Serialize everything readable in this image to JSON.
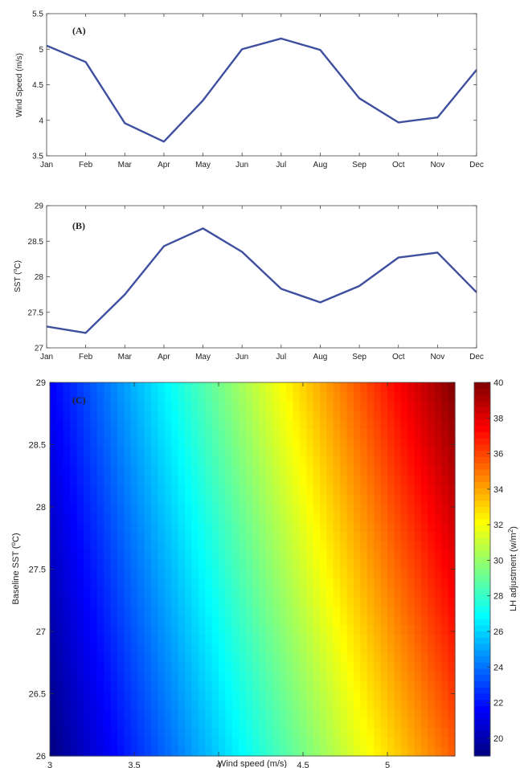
{
  "chart_data": [
    {
      "type": "line",
      "panel_label": "(A)",
      "categories": [
        "Jan",
        "Feb",
        "Mar",
        "Apr",
        "May",
        "Jun",
        "Jul",
        "Aug",
        "Sep",
        "Oct",
        "Nov",
        "Dec"
      ],
      "values": [
        5.05,
        4.82,
        3.96,
        3.7,
        4.28,
        5.0,
        5.15,
        4.99,
        4.31,
        3.97,
        4.04,
        4.71
      ],
      "xlabel": "",
      "ylabel": "Wind Speed (m/s)",
      "ylim": [
        3.5,
        5.5
      ],
      "yticks": [
        "3.5",
        "4",
        "4.5",
        "5",
        "5.5"
      ],
      "line_color": "#3f4f9f",
      "grid": false
    },
    {
      "type": "line",
      "panel_label": "(B)",
      "categories": [
        "Jan",
        "Feb",
        "Mar",
        "Apr",
        "May",
        "Jun",
        "Jul",
        "Aug",
        "Sep",
        "Oct",
        "Nov",
        "Dec"
      ],
      "values": [
        27.3,
        27.21,
        27.75,
        28.43,
        28.68,
        28.35,
        27.83,
        27.64,
        27.87,
        28.27,
        28.34,
        27.78
      ],
      "xlabel": "",
      "ylabel_main": "SST (",
      "ylabel_sup": "o",
      "ylabel_end": "C)",
      "ylim": [
        27,
        29
      ],
      "yticks": [
        "27",
        "27.5",
        "28",
        "28.5",
        "29"
      ],
      "line_color": "#3f4f9f",
      "grid": false
    },
    {
      "type": "heatmap",
      "panel_label": "(C)",
      "xlabel": "Wind speed (m/s)",
      "ylabel_main": "Baseline SST (",
      "ylabel_sup": "o",
      "ylabel_end": "C)",
      "xlim": [
        3,
        5.4
      ],
      "ylim": [
        26,
        29
      ],
      "xticks": [
        "3",
        "3.5",
        "4",
        "4.5",
        "5"
      ],
      "yticks": [
        "26",
        "26.5",
        "27",
        "27.5",
        "28",
        "28.5",
        "29"
      ],
      "z_range": [
        19,
        40
      ],
      "corner_values": {
        "x3_y26": 19,
        "x3_y29": 21.5,
        "x5.4_y26": 35.5,
        "x5.4_y29": 40
      },
      "colorbar": {
        "label_main": "LH adjustment (w/m",
        "label_sup": "2",
        "label_end": ")",
        "ticks": [
          "20",
          "22",
          "24",
          "26",
          "28",
          "30",
          "32",
          "34",
          "36",
          "38",
          "40"
        ],
        "colormap": "jet"
      }
    }
  ]
}
